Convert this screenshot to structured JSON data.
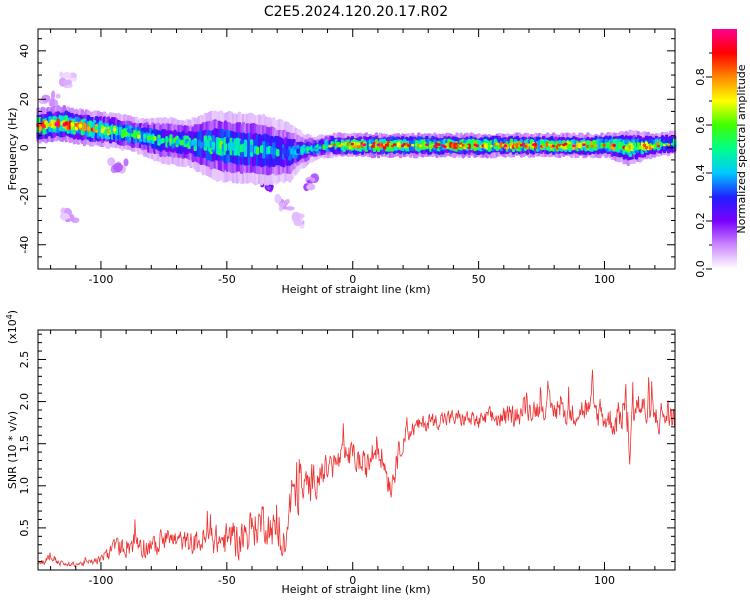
{
  "title": "C2E5.2024.120.20.17.R02",
  "chart_data": [
    {
      "type": "heatmap",
      "xlabel": "Height of straight line (km)",
      "ylabel": "Frequency (Hz)",
      "xlim": [
        -125,
        128
      ],
      "ylim": [
        -50,
        49
      ],
      "xticks": [
        -100,
        -50,
        0,
        50,
        100
      ],
      "yticks": [
        -40,
        -20,
        0,
        20,
        40
      ],
      "colorbar": {
        "label": "Normalized spectral amplitude",
        "range": [
          0,
          1
        ],
        "ticks": [
          0.0,
          0.2,
          0.4,
          0.6,
          0.8
        ],
        "colors": [
          "#ffffff",
          "#cc88ff",
          "#7a00ff",
          "#2020ff",
          "#00c8ff",
          "#00ff8c",
          "#40ff00",
          "#ffff00",
          "#ff8800",
          "#ff0000",
          "#ff0090"
        ]
      },
      "ridge": {
        "x": [
          -125,
          -115,
          -105,
          -95,
          -85,
          -75,
          -65,
          -55,
          -45,
          -35,
          -25,
          -20,
          -15,
          -10,
          0,
          10,
          20,
          30,
          40,
          50,
          60,
          70,
          80,
          90,
          100,
          110,
          120,
          128
        ],
        "freq": [
          9,
          10,
          8,
          7,
          5,
          3,
          2,
          1,
          0,
          -1,
          -2,
          -1,
          0,
          1,
          1,
          1,
          1,
          1,
          1,
          1,
          1,
          1,
          1,
          1,
          1,
          0,
          1,
          2
        ],
        "width": [
          3,
          3,
          3,
          3,
          3,
          4,
          4,
          6,
          6,
          6,
          5,
          3,
          2,
          2,
          2,
          2,
          2,
          2,
          2,
          2,
          2,
          2,
          2,
          2,
          2,
          3,
          2,
          2
        ],
        "amplitude": [
          0.8,
          0.85,
          0.75,
          0.6,
          0.55,
          0.5,
          0.5,
          0.5,
          0.5,
          0.45,
          0.4,
          0.4,
          0.5,
          0.6,
          0.8,
          0.85,
          0.85,
          0.85,
          0.85,
          0.85,
          0.8,
          0.8,
          0.8,
          0.8,
          0.8,
          0.7,
          0.75,
          0.6
        ]
      },
      "blobs": [
        {
          "x": -55,
          "y": 10,
          "amp": 0.25
        },
        {
          "x": -50,
          "y": 8,
          "amp": 0.22
        },
        {
          "x": -60,
          "y": 6,
          "amp": 0.2
        },
        {
          "x": -45,
          "y": -5,
          "amp": 0.3
        },
        {
          "x": -57,
          "y": -7,
          "amp": 0.28
        },
        {
          "x": -38,
          "y": -10,
          "amp": 0.22
        },
        {
          "x": -35,
          "y": -15,
          "amp": 0.25
        },
        {
          "x": -22,
          "y": -7,
          "amp": 0.25
        },
        {
          "x": -18,
          "y": -14,
          "amp": 0.12
        },
        {
          "x": -27,
          "y": -23,
          "amp": 0.08
        },
        {
          "x": -22,
          "y": -30,
          "amp": 0.06
        },
        {
          "x": -113,
          "y": -28,
          "amp": 0.08
        },
        {
          "x": -113,
          "y": 28,
          "amp": 0.06
        },
        {
          "x": -120,
          "y": 20,
          "amp": 0.08
        },
        {
          "x": -93,
          "y": -8,
          "amp": 0.1
        }
      ]
    },
    {
      "type": "line",
      "xlabel": "Height of straight line (km)",
      "ylabel": "SNR (10 * v/v)",
      "y_multiplier_label": "(x10",
      "y_multiplier_exp": "4",
      "y_multiplier_close": ")",
      "xlim": [
        -125,
        128
      ],
      "ylim": [
        0,
        28500
      ],
      "xticks": [
        -100,
        -50,
        0,
        50,
        100
      ],
      "ytick_labels": [
        "0.5",
        "1.0",
        "1.5",
        "2.0",
        "2.5"
      ],
      "yticks": [
        5000,
        10000,
        15000,
        20000,
        25000
      ],
      "color": "#ee3333",
      "series": [
        {
          "x": [
            -125,
            -120,
            -115,
            -110,
            -105,
            -100,
            -95,
            -90,
            -85,
            -80,
            -75,
            -70,
            -65,
            -60,
            -55,
            -50,
            -45,
            -40,
            -35,
            -30,
            -27,
            -25,
            -22,
            -20,
            -15,
            -10,
            -5,
            0,
            5,
            10,
            15,
            20,
            25,
            30,
            35,
            40,
            45,
            50,
            55,
            60,
            65,
            70,
            75,
            80,
            85,
            90,
            95,
            100,
            105,
            108,
            110,
            112,
            115,
            120,
            125,
            128
          ],
          "y": [
            800,
            1500,
            600,
            700,
            900,
            1200,
            2500,
            3000,
            3500,
            2500,
            3500,
            3500,
            3000,
            3500,
            3500,
            3500,
            3500,
            5000,
            6000,
            4000,
            2000,
            8000,
            10000,
            9000,
            11000,
            12000,
            13000,
            13500,
            12000,
            15000,
            10000,
            16000,
            17000,
            17500,
            18000,
            18000,
            18000,
            17500,
            18000,
            18000,
            18500,
            19000,
            19500,
            19000,
            18500,
            19000,
            19000,
            18000,
            17500,
            20000,
            15000,
            20000,
            19000,
            18000,
            18500,
            18000
          ],
          "noise": [
            500,
            800,
            400,
            400,
            500,
            800,
            1500,
            2000,
            2500,
            1800,
            2000,
            2000,
            2000,
            2500,
            2500,
            3000,
            3000,
            3500,
            3500,
            3000,
            1500,
            4500,
            5500,
            4000,
            3000,
            2500,
            2500,
            2500,
            2500,
            2500,
            2500,
            2000,
            1500,
            1500,
            1500,
            1500,
            1500,
            1500,
            1800,
            1800,
            2000,
            2000,
            2000,
            2000,
            2200,
            2200,
            2500,
            2500,
            2500,
            4500,
            4500,
            3500,
            3000,
            2800,
            2800,
            2800
          ]
        }
      ]
    }
  ]
}
